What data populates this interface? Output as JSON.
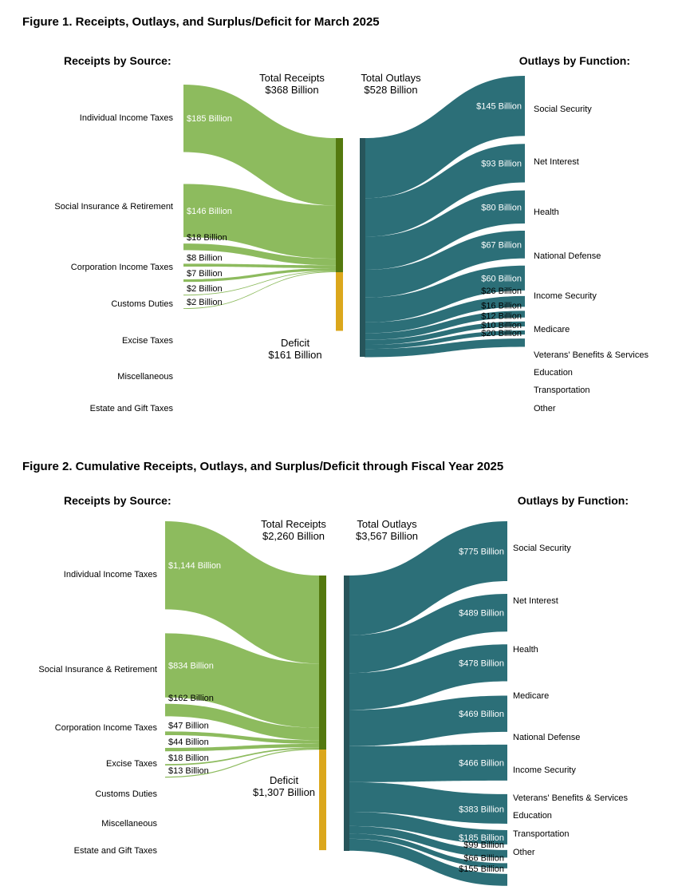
{
  "colors": {
    "receipts": "#8dbb5e",
    "receipts_bar": "#54790f",
    "deficit_bar": "#dba71c",
    "outlays": "#2c6f78",
    "outlays_bar": "#27555b"
  },
  "chart_data": [
    {
      "type": "sankey",
      "title": "Figure 1. Receipts, Outlays, and Surplus/Deficit for March 2025",
      "receipts_heading": "Receipts by Source:",
      "outlays_heading": "Outlays by Function:",
      "total_receipts_label": "Total Receipts",
      "total_receipts_value": "$368 Billion",
      "total_outlays_label": "Total Outlays",
      "total_outlays_value": "$528 Billion",
      "deficit_label": "Deficit",
      "deficit_value": "$161 Billion",
      "total_receipts": 368,
      "total_outlays": 528,
      "deficit": 161,
      "receipts": [
        {
          "name": "Individual Income Taxes",
          "value": 185,
          "label": "$185 Billion"
        },
        {
          "name": "Social Insurance & Retirement",
          "value": 146,
          "label": "$146 Billion"
        },
        {
          "name": "Corporation Income Taxes",
          "value": 18,
          "label": "$18 Billion"
        },
        {
          "name": "Customs Duties",
          "value": 8,
          "label": "$8 Billion"
        },
        {
          "name": "Excise Taxes",
          "value": 7,
          "label": "$7 Billion"
        },
        {
          "name": "Miscellaneous",
          "value": 2,
          "label": "$2 Billion"
        },
        {
          "name": "Estate and Gift Taxes",
          "value": 2,
          "label": "$2 Billion"
        }
      ],
      "outlays": [
        {
          "name": "Social Security",
          "value": 145,
          "label": "$145 Billion"
        },
        {
          "name": "Net Interest",
          "value": 93,
          "label": "$93 Billion"
        },
        {
          "name": "Health",
          "value": 80,
          "label": "$80 Billion"
        },
        {
          "name": "National Defense",
          "value": 67,
          "label": "$67 Billion"
        },
        {
          "name": "Income Security",
          "value": 60,
          "label": "$60 Billion"
        },
        {
          "name": "Medicare",
          "value": 26,
          "label": "$26 Billion"
        },
        {
          "name": "Veterans' Benefits & Services",
          "value": 16,
          "label": "$16 Billion"
        },
        {
          "name": "Education",
          "value": 12,
          "label": "$12 Billion"
        },
        {
          "name": "Transportation",
          "value": 10,
          "label": "$10 Billion"
        },
        {
          "name": "Other",
          "value": 20,
          "label": "$20 Billion"
        }
      ]
    },
    {
      "type": "sankey",
      "title": "Figure 2. Cumulative Receipts, Outlays, and Surplus/Deficit through Fiscal Year 2025",
      "receipts_heading": "Receipts by Source:",
      "outlays_heading": "Outlays by Function:",
      "total_receipts_label": "Total Receipts",
      "total_receipts_value": "$2,260 Billion",
      "total_outlays_label": "Total Outlays",
      "total_outlays_value": "$3,567 Billion",
      "deficit_label": "Deficit",
      "deficit_value": "$1,307 Billion",
      "total_receipts": 2260,
      "total_outlays": 3567,
      "deficit": 1307,
      "receipts": [
        {
          "name": "Individual Income Taxes",
          "value": 1144,
          "label": "$1,144 Billion"
        },
        {
          "name": "Social Insurance & Retirement",
          "value": 834,
          "label": "$834 Billion"
        },
        {
          "name": "Corporation Income Taxes",
          "value": 162,
          "label": "$162 Billion"
        },
        {
          "name": "Excise Taxes",
          "value": 47,
          "label": "$47 Billion"
        },
        {
          "name": "Customs Duties",
          "value": 44,
          "label": "$44 Billion"
        },
        {
          "name": "Miscellaneous",
          "value": 18,
          "label": "$18 Billion"
        },
        {
          "name": "Estate and Gift Taxes",
          "value": 13,
          "label": "$13 Billion"
        }
      ],
      "outlays": [
        {
          "name": "Social Security",
          "value": 775,
          "label": "$775 Billion"
        },
        {
          "name": "Net Interest",
          "value": 489,
          "label": "$489 Billion"
        },
        {
          "name": "Health",
          "value": 478,
          "label": "$478 Billion"
        },
        {
          "name": "Medicare",
          "value": 469,
          "label": "$469 Billion"
        },
        {
          "name": "National Defense",
          "value": 466,
          "label": "$466 Billion"
        },
        {
          "name": "Income Security",
          "value": 383,
          "label": "$383 Billion"
        },
        {
          "name": "Veterans' Benefits & Services",
          "value": 185,
          "label": "$185 Billion"
        },
        {
          "name": "Education",
          "value": 99,
          "label": "$99 Billion"
        },
        {
          "name": "Transportation",
          "value": 66,
          "label": "$66 Billion"
        },
        {
          "name": "Other",
          "value": 155,
          "label": "$155 Billion"
        }
      ]
    }
  ]
}
